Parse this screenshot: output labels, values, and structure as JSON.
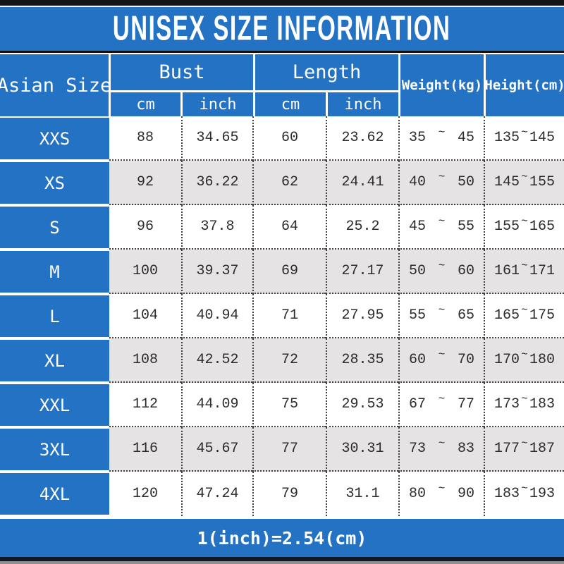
{
  "title": "UNISEX SIZE INFORMATION",
  "table": {
    "headers": {
      "asian_size": "Asian Size",
      "bust": "Bust",
      "length": "Length",
      "weight": "Weight(kg)",
      "height": "Height(cm)",
      "bust_cm": "cm",
      "bust_inch": "inch",
      "length_cm": "cm",
      "length_inch": "inch"
    },
    "range_separator": "~",
    "rows": [
      {
        "size": "XXS",
        "bust_cm": "88",
        "bust_inch": "34.65",
        "length_cm": "60",
        "length_inch": "23.62",
        "weight_min": "35",
        "weight_max": "45",
        "height_min": "135",
        "height_max": "145"
      },
      {
        "size": "XS",
        "bust_cm": "92",
        "bust_inch": "36.22",
        "length_cm": "62",
        "length_inch": "24.41",
        "weight_min": "40",
        "weight_max": "50",
        "height_min": "145",
        "height_max": "155"
      },
      {
        "size": "S",
        "bust_cm": "96",
        "bust_inch": "37.8",
        "length_cm": "64",
        "length_inch": "25.2",
        "weight_min": "45",
        "weight_max": "55",
        "height_min": "155",
        "height_max": "165"
      },
      {
        "size": "M",
        "bust_cm": "100",
        "bust_inch": "39.37",
        "length_cm": "69",
        "length_inch": "27.17",
        "weight_min": "50",
        "weight_max": "60",
        "height_min": "161",
        "height_max": "171"
      },
      {
        "size": "L",
        "bust_cm": "104",
        "bust_inch": "40.94",
        "length_cm": "71",
        "length_inch": "27.95",
        "weight_min": "55",
        "weight_max": "65",
        "height_min": "165",
        "height_max": "175"
      },
      {
        "size": "XL",
        "bust_cm": "108",
        "bust_inch": "42.52",
        "length_cm": "72",
        "length_inch": "28.35",
        "weight_min": "60",
        "weight_max": "70",
        "height_min": "170",
        "height_max": "180"
      },
      {
        "size": "XXL",
        "bust_cm": "112",
        "bust_inch": "44.09",
        "length_cm": "75",
        "length_inch": "29.53",
        "weight_min": "67",
        "weight_max": "77",
        "height_min": "173",
        "height_max": "183"
      },
      {
        "size": "3XL",
        "bust_cm": "116",
        "bust_inch": "45.67",
        "length_cm": "77",
        "length_inch": "30.31",
        "weight_min": "73",
        "weight_max": "83",
        "height_min": "177",
        "height_max": "187"
      },
      {
        "size": "4XL",
        "bust_cm": "120",
        "bust_inch": "47.24",
        "length_cm": "79",
        "length_inch": "31.1",
        "weight_min": "80",
        "weight_max": "90",
        "height_min": "183",
        "height_max": "193"
      }
    ]
  },
  "footer": {
    "note": "1(inch)=2.54(cm)"
  },
  "colors": {
    "brand_blue": "#2472c4",
    "row_alt_gray": "#e5e3e4",
    "dotted_border": "#3f3f3f",
    "text_dark": "#2b2b2b",
    "top_bar_black": "#141414",
    "title_divider_black": "#111111",
    "bottom_bar_navy": "#101826",
    "bottom_strip_gray": "#8f8f8f"
  }
}
